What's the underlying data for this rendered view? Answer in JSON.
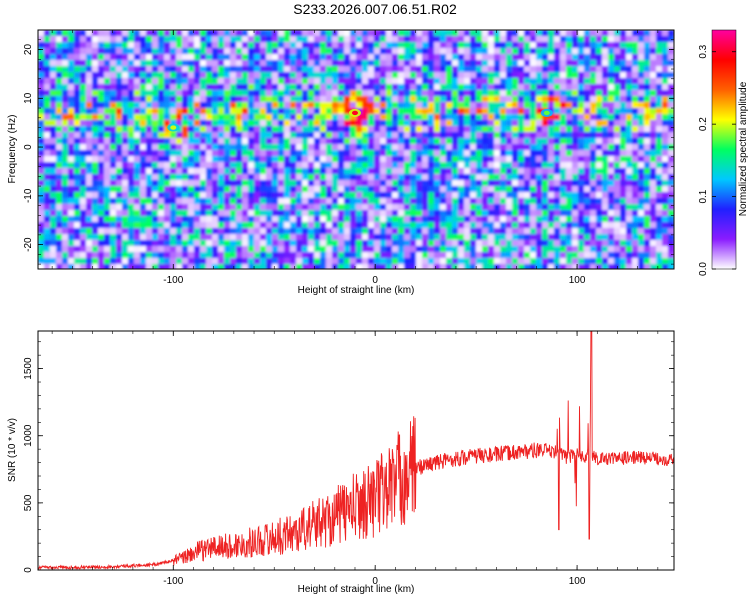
{
  "figure": {
    "title": "S233.2026.007.06.51.R02"
  },
  "chart_data": [
    {
      "type": "heatmap",
      "xlabel": "Height of straight line (km)",
      "ylabel": "Frequency (Hz)",
      "xlim": [
        -167,
        148
      ],
      "ylim": [
        -25,
        24
      ],
      "xticks": [
        -100,
        0,
        100
      ],
      "yticks": [
        -20,
        -10,
        0,
        10,
        20
      ],
      "colorbar": {
        "label": "Normalized spectral amplitude",
        "range": [
          0.0,
          0.33
        ],
        "ticks": [
          0.0,
          0.1,
          0.2,
          0.3
        ],
        "tick_labels": [
          "0.0",
          "0.1",
          "0.2",
          "0.3"
        ],
        "colormap": [
          "#ffffff",
          "#8a1cff",
          "#2020ff",
          "#00c8ff",
          "#00ff60",
          "#ffff00",
          "#ff6000",
          "#ff0000",
          "#ff00a0"
        ]
      },
      "features": [
        {
          "description": "band of high amplitude",
          "frequency_hz": 8
        },
        {
          "peak_x_km": -100,
          "peak_frequency_hz": 4,
          "amplitude": 0.22
        },
        {
          "peak_x_km": -10,
          "peak_frequency_hz": 7,
          "amplitude": 0.33
        },
        {
          "peak_x_km": 85,
          "peak_frequency_hz": 7,
          "amplitude": 0.2
        }
      ],
      "grid": false
    },
    {
      "type": "line",
      "xlabel": "Height of straight line (km)",
      "ylabel": "SNR (10 * v/v)",
      "xlim": [
        -167,
        148
      ],
      "ylim": [
        0,
        1780
      ],
      "xticks": [
        -100,
        0,
        100
      ],
      "yticks": [
        0,
        500,
        1000,
        1500
      ],
      "series": [
        {
          "color": "#ee2222",
          "x": [
            -167,
            -150,
            -130,
            -110,
            -100,
            -95,
            -90,
            -80,
            -70,
            -60,
            -50,
            -40,
            -30,
            -20,
            -10,
            0,
            10,
            20,
            30,
            40,
            50,
            60,
            70,
            80,
            90,
            95,
            100,
            104,
            106,
            108,
            110,
            115,
            120,
            130,
            140,
            148
          ],
          "y": [
            20,
            20,
            25,
            40,
            70,
            90,
            130,
            170,
            180,
            210,
            240,
            280,
            340,
            400,
            470,
            540,
            660,
            760,
            800,
            830,
            850,
            860,
            880,
            890,
            880,
            860,
            860,
            840,
            870,
            850,
            830,
            830,
            830,
            840,
            830,
            820
          ]
        }
      ],
      "annotations": [
        {
          "x_km": 107,
          "y": 1780,
          "note": "max spike"
        },
        {
          "x_km": 106,
          "y": 230,
          "note": "min dip"
        },
        {
          "x_km": 91,
          "y": 300,
          "note": "dip"
        }
      ],
      "grid": false
    }
  ]
}
